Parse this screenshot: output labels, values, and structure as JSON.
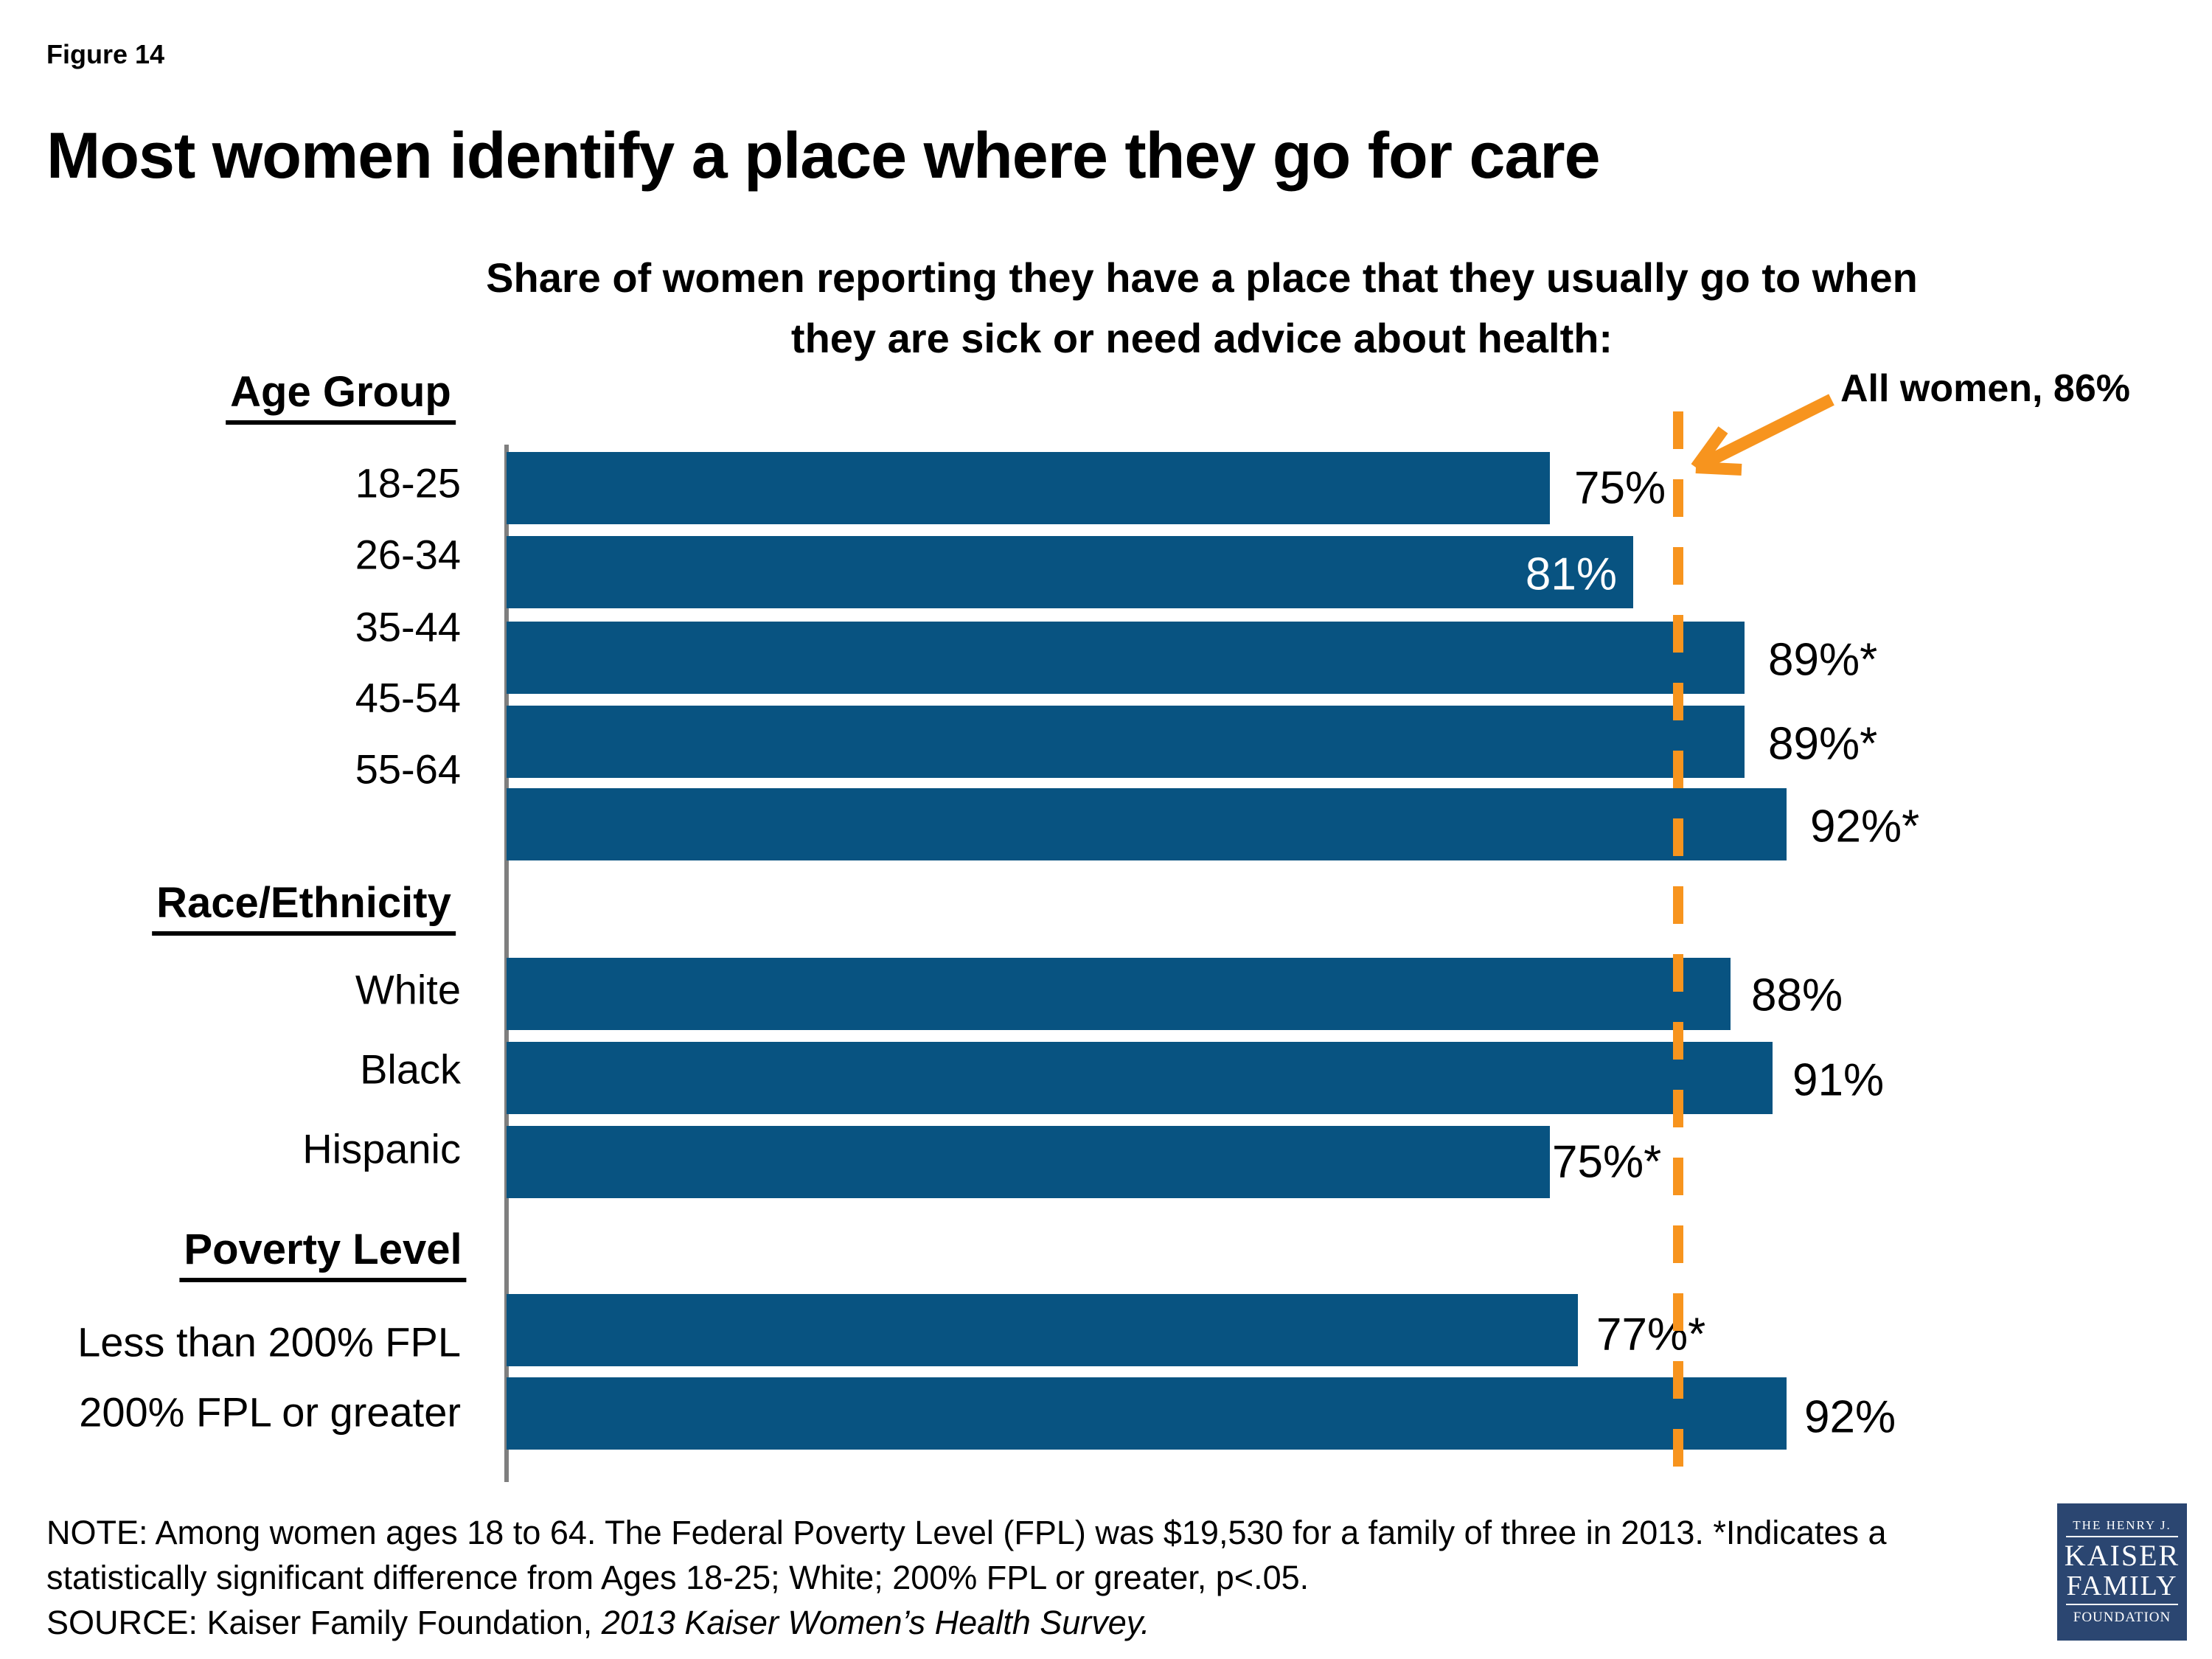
{
  "figure_label": "Figure 14",
  "title": "Most women identify a place where they go for care",
  "subtitle": [
    "Share of women reporting they have a place that they usually go to when",
    "they are sick or need advice about health:"
  ],
  "annotation": {
    "label": "All women, 86%",
    "value": 86
  },
  "chart_data": {
    "type": "bar",
    "orientation": "horizontal",
    "unit": "%",
    "x_axis": {
      "min": 0,
      "max": 100,
      "gridlines": false
    },
    "reference_line": {
      "label": "All women, 86%",
      "value": 86,
      "style": "dashed",
      "color": "#F7941E"
    },
    "bar_color": "#085381",
    "sections": [
      {
        "header": "Age Group",
        "rows": [
          {
            "label": "18-25",
            "value": 75,
            "display": "75%"
          },
          {
            "label": "26-34",
            "value": 81,
            "display": "81%",
            "label_inside": true
          },
          {
            "label": "35-44",
            "value": 89,
            "display": "89%*"
          },
          {
            "label": "45-54",
            "value": 89,
            "display": "89%*"
          },
          {
            "label": "55-64",
            "value": 92,
            "display": "92%*"
          }
        ]
      },
      {
        "header": "Race/Ethnicity",
        "rows": [
          {
            "label": "White",
            "value": 88,
            "display": "88%"
          },
          {
            "label": "Black",
            "value": 91,
            "display": "91%"
          },
          {
            "label": "Hispanic",
            "value": 75,
            "display": "75%*"
          }
        ]
      },
      {
        "header": "Poverty Level",
        "rows": [
          {
            "label": "Less than 200% FPL",
            "value": 77,
            "display": "77%*"
          },
          {
            "label": "200% FPL or greater",
            "value": 92,
            "display": "92%"
          }
        ]
      }
    ]
  },
  "note": {
    "line1": "NOTE: Among women ages 18 to 64. The Federal Poverty Level (FPL) was $19,530 for a family of three in 2013.  *Indicates a",
    "line2": "statistically significant difference from Ages 18-25; White; 200% FPL or greater, p<.05.",
    "source_prefix": "SOURCE: Kaiser Family Foundation, ",
    "source_italic": "2013 Kaiser Women’s Health Survey."
  },
  "logo": {
    "line1": "THE HENRY J.",
    "line2": "KAISER",
    "line3": "FAMILY",
    "line4": "FOUNDATION"
  },
  "colors": {
    "bar_blue": "#085381",
    "orange": "#F7941E",
    "axis_gray": "#7F7F7F",
    "text_black": "#000000",
    "logo_navy": "#2B4671"
  }
}
